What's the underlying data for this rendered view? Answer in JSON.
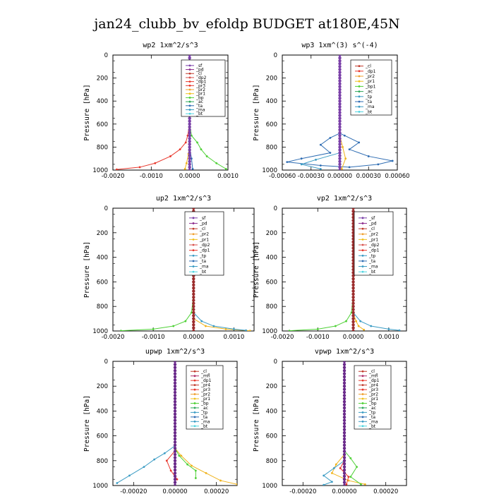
{
  "page_title": "jan24_clubb_bv_efoldp  BUDGET at180E,45N",
  "chart_data": [
    {
      "type": "line",
      "title": "wp2   1xm^2/s^3",
      "ylabel": "Pressure [hPa]",
      "xlim": [
        -0.002,
        0.001
      ],
      "ylim": [
        0,
        1000
      ],
      "x_ticks": [
        "-0.0020",
        "-0.0010",
        "0.0000",
        "0.0010"
      ],
      "x_tick_values": [
        -0.002,
        -0.001,
        0.0,
        0.001
      ],
      "y_ticks": [
        "0",
        "200",
        "400",
        "600",
        "800",
        "1000"
      ],
      "legend": [
        "_sf",
        "_pd",
        "_cl",
        "_dp2",
        "_dp1",
        "_pr3",
        "_pr2",
        "_pr1",
        "_bp",
        "_ac",
        "_ta",
        "_ma",
        "_bt"
      ],
      "series": [
        {
          "name": "_dp1",
          "color": "#e8372c",
          "points": [
            [
              0,
              0
            ],
            [
              0,
              600
            ],
            [
              -5e-05,
              700
            ],
            [
              -0.0001,
              760
            ],
            [
              -0.00025,
              820
            ],
            [
              -0.0005,
              880
            ],
            [
              -0.0009,
              940
            ],
            [
              -0.0013,
              975
            ],
            [
              -0.0019,
              995
            ]
          ]
        },
        {
          "name": "_bp",
          "color": "#4fd137",
          "points": [
            [
              0,
              0
            ],
            [
              0,
              600
            ],
            [
              5e-05,
              700
            ],
            [
              0.0002,
              760
            ],
            [
              0.0003,
              820
            ],
            [
              0.00045,
              880
            ],
            [
              0.0007,
              940
            ],
            [
              0.00095,
              990
            ]
          ]
        },
        {
          "name": "_pr1",
          "color": "#f0b31c",
          "points": [
            [
              0,
              0
            ],
            [
              0,
              760
            ],
            [
              -3e-05,
              860
            ],
            [
              -8e-05,
              940
            ],
            [
              -0.00012,
              990
            ]
          ]
        },
        {
          "name": "_ta",
          "color": "#2f6db3",
          "points": [
            [
              0,
              0
            ],
            [
              0,
              800
            ],
            [
              5e-05,
              900
            ],
            [
              8e-05,
              990
            ]
          ]
        },
        {
          "name": "_sf",
          "color": "#7a3fa8",
          "points": [
            [
              0,
              0
            ],
            [
              0,
              1000
            ]
          ]
        }
      ]
    },
    {
      "type": "line",
      "title": "wp3   1xm^(3) s^(-4)",
      "ylabel": "Pressure [hPa]",
      "xlim": [
        -0.0006,
        0.0006
      ],
      "ylim": [
        0,
        1000
      ],
      "x_ticks": [
        "-0.00060",
        "-0.00030",
        "0.00000",
        "0.00030",
        "0.00060"
      ],
      "x_tick_values": [
        -0.0006,
        -0.0003,
        0.0,
        0.0003,
        0.0006
      ],
      "y_ticks": [
        "0",
        "200",
        "400",
        "600",
        "800",
        "1000"
      ],
      "legend": [
        "_cl",
        "_dp1",
        "_pr2",
        "_pr1",
        "_bp1",
        "_ac",
        "_tp",
        "_ta",
        "_ma",
        "_bt"
      ],
      "series": [
        {
          "name": "_ta",
          "color": "#2f6db3",
          "points": [
            [
              0,
              0
            ],
            [
              0,
              680
            ],
            [
              -0.0001,
              720
            ],
            [
              -0.0002,
              780
            ],
            [
              -0.0001,
              850
            ],
            [
              -0.0004,
              900
            ],
            [
              -0.00055,
              930
            ],
            [
              -0.0002,
              960
            ],
            [
              0.0001,
              975
            ],
            [
              0.0004,
              950
            ],
            [
              0.00055,
              920
            ],
            [
              0.0003,
              880
            ],
            [
              0.0001,
              820
            ],
            [
              0.0002,
              760
            ],
            [
              5e-05,
              700
            ],
            [
              0,
              680
            ]
          ]
        },
        {
          "name": "_tp",
          "color": "#3b9cc4",
          "points": [
            [
              0,
              0
            ],
            [
              0,
              850
            ],
            [
              -0.00025,
              910
            ],
            [
              -0.0004,
              950
            ],
            [
              -0.0002,
              990
            ]
          ]
        },
        {
          "name": "_pr1",
          "color": "#f0b31c",
          "points": [
            [
              0,
              0
            ],
            [
              0,
              700
            ],
            [
              3e-05,
              800
            ],
            [
              6e-05,
              900
            ],
            [
              2e-05,
              990
            ]
          ]
        },
        {
          "name": "_cl",
          "color": "#7a3fa8",
          "points": [
            [
              0,
              0
            ],
            [
              0,
              1000
            ]
          ]
        }
      ]
    },
    {
      "type": "line",
      "title": "up2   1xm^2/s^3",
      "ylabel": "Pressure [hPa]",
      "xlim": [
        -0.002,
        0.0015
      ],
      "ylim": [
        0,
        1000
      ],
      "x_ticks": [
        "-0.0020",
        "-0.0010",
        "0.0000",
        "0.0010"
      ],
      "x_tick_values": [
        -0.002,
        -0.001,
        0.0,
        0.001
      ],
      "y_ticks": [
        "0",
        "200",
        "400",
        "600",
        "800",
        "1000"
      ],
      "legend": [
        "_sf",
        "_pd",
        "_cl",
        "_pr2",
        "_pr1",
        "_dp2",
        "_dp1",
        "_tp",
        "_ta",
        "_ma",
        "_bt"
      ],
      "series": [
        {
          "name": "_dp1",
          "color": "#4fd137",
          "points": [
            [
              0,
              0
            ],
            [
              0,
              700
            ],
            [
              -5e-05,
              850
            ],
            [
              -0.0002,
              920
            ],
            [
              -0.0005,
              960
            ],
            [
              -0.001,
              985
            ],
            [
              -0.0018,
              998
            ]
          ]
        },
        {
          "name": "_pr1",
          "color": "#f0b31c",
          "points": [
            [
              0,
              0
            ],
            [
              0,
              900
            ],
            [
              0.0003,
              960
            ],
            [
              0.0008,
              985
            ],
            [
              0.0014,
              998
            ]
          ]
        },
        {
          "name": "_tp",
          "color": "#3b9cc4",
          "points": [
            [
              0,
              0
            ],
            [
              0,
              850
            ],
            [
              0.0002,
              920
            ],
            [
              0.0005,
              960
            ],
            [
              0.001,
              985
            ],
            [
              0.0013,
              995
            ]
          ]
        },
        {
          "name": "_sf",
          "color": "#c0392b",
          "points": [
            [
              0,
              0
            ],
            [
              0,
              1000
            ]
          ]
        }
      ]
    },
    {
      "type": "line",
      "title": "vp2   1xm^2/s^3",
      "ylabel": "Pressure [hPa]",
      "xlim": [
        -0.002,
        0.0015
      ],
      "ylim": [
        0,
        1000
      ],
      "x_ticks": [
        "-0.0020",
        "-0.0010",
        "0.0000",
        "0.0010"
      ],
      "x_tick_values": [
        -0.002,
        -0.001,
        0.0,
        0.001
      ],
      "y_ticks": [
        "0",
        "200",
        "400",
        "600",
        "800",
        "1000"
      ],
      "legend": [
        "_sf",
        "_pd",
        "_cl",
        "_pr2",
        "_pr1",
        "_dp2",
        "_dp1",
        "_tp",
        "_ta",
        "_ma",
        "_bt"
      ],
      "series": [
        {
          "name": "_dp1",
          "color": "#4fd137",
          "points": [
            [
              0,
              0
            ],
            [
              0,
              700
            ],
            [
              -5e-05,
              850
            ],
            [
              -0.0002,
              920
            ],
            [
              -0.0005,
              960
            ],
            [
              -0.001,
              985
            ],
            [
              -0.0018,
              998
            ]
          ]
        },
        {
          "name": "_pr1",
          "color": "#f0b31c",
          "points": [
            [
              0,
              0
            ],
            [
              0,
              860
            ],
            [
              8e-05,
              920
            ],
            [
              0.00015,
              960
            ],
            [
              0.0003,
              990
            ]
          ]
        },
        {
          "name": "_tp",
          "color": "#3b9cc4",
          "points": [
            [
              0,
              0
            ],
            [
              0,
              850
            ],
            [
              0.0002,
              920
            ],
            [
              0.0005,
              960
            ],
            [
              0.001,
              985
            ],
            [
              0.0013,
              995
            ]
          ]
        },
        {
          "name": "_sf",
          "color": "#c0392b",
          "points": [
            [
              0,
              0
            ],
            [
              0,
              1000
            ]
          ]
        }
      ]
    },
    {
      "type": "line",
      "title": "upwp   1xm^2/s^3",
      "ylabel": "Pressure [hPa]",
      "xlim": [
        -0.0003,
        0.0003
      ],
      "ylim": [
        0,
        1000
      ],
      "x_ticks": [
        "-0.00020",
        "0.00000",
        "0.00020"
      ],
      "x_tick_values": [
        -0.0002,
        0.0,
        0.0002
      ],
      "y_ticks": [
        "0",
        "200",
        "400",
        "600",
        "800",
        "1000"
      ],
      "legend": [
        "_cl",
        "_mfl",
        "_dp1",
        "_pr4",
        "_pr3",
        "_pr2",
        "_pr1",
        "_bp",
        "_ac",
        "_tp",
        "_ta",
        "_ma",
        "_bt"
      ],
      "series": [
        {
          "name": "_pr1",
          "color": "#f0b31c",
          "points": [
            [
              0,
              0
            ],
            [
              0,
              700
            ],
            [
              3e-05,
              760
            ],
            [
              8e-05,
              840
            ],
            [
              0.00015,
              900
            ],
            [
              0.00022,
              960
            ],
            [
              0.0003,
              990
            ]
          ]
        },
        {
          "name": "_tp",
          "color": "#3b9cc4",
          "points": [
            [
              0,
              0
            ],
            [
              0,
              680
            ],
            [
              -5e-05,
              740
            ],
            [
              -0.0001,
              790
            ],
            [
              -0.00015,
              850
            ],
            [
              -0.00022,
              920
            ],
            [
              -0.00028,
              980
            ]
          ]
        },
        {
          "name": "_bp",
          "color": "#4fd137",
          "points": [
            [
              0,
              0
            ],
            [
              0,
              700
            ],
            [
              2e-05,
              760
            ],
            [
              6e-05,
              830
            ],
            [
              0.0001,
              880
            ],
            [
              0.0001,
              940
            ]
          ]
        },
        {
          "name": "_dp1",
          "color": "#e8372c",
          "points": [
            [
              0,
              0
            ],
            [
              0,
              720
            ],
            [
              -4e-05,
              800
            ],
            [
              -2e-05,
              880
            ],
            [
              1e-05,
              950
            ]
          ]
        },
        {
          "name": "_cl",
          "color": "#7a3fa8",
          "points": [
            [
              0,
              0
            ],
            [
              0,
              1000
            ]
          ]
        }
      ]
    },
    {
      "type": "line",
      "title": "vpwp   1xm^2/s^3",
      "ylabel": "Pressure [hPa]",
      "xlim": [
        -0.0003,
        0.0003
      ],
      "ylim": [
        0,
        1000
      ],
      "x_ticks": [
        "-0.00020",
        "0.00000",
        "0.00020"
      ],
      "x_tick_values": [
        -0.0002,
        0.0,
        0.0002
      ],
      "y_ticks": [
        "0",
        "200",
        "400",
        "600",
        "800",
        "1000"
      ],
      "legend": [
        "_cl",
        "_mfl",
        "_dp1",
        "_pr4",
        "_pr3",
        "_pr2",
        "_pr1",
        "_bp",
        "_ac",
        "_tp",
        "_ta",
        "_ma",
        "_bt"
      ],
      "series": [
        {
          "name": "_pr1",
          "color": "#f0b31c",
          "points": [
            [
              0,
              0
            ],
            [
              0,
              750
            ],
            [
              -4e-05,
              830
            ],
            [
              -6e-05,
              900
            ],
            [
              2e-05,
              960
            ],
            [
              0.0001,
              990
            ]
          ]
        },
        {
          "name": "_bp",
          "color": "#4fd137",
          "points": [
            [
              0,
              0
            ],
            [
              0,
              720
            ],
            [
              3e-05,
              780
            ],
            [
              6e-05,
              850
            ],
            [
              3e-05,
              930
            ],
            [
              8e-05,
              990
            ]
          ]
        },
        {
          "name": "_tp",
          "color": "#3b9cc4",
          "points": [
            [
              0,
              0
            ],
            [
              0,
              800
            ],
            [
              -5e-05,
              860
            ],
            [
              -0.0001,
              920
            ],
            [
              -6e-05,
              970
            ],
            [
              -0.0001,
              995
            ]
          ]
        },
        {
          "name": "_dp1",
          "color": "#e8372c",
          "points": [
            [
              0,
              0
            ],
            [
              0,
              800
            ],
            [
              -2e-05,
              860
            ],
            [
              2e-05,
              930
            ],
            [
              1e-05,
              990
            ]
          ]
        },
        {
          "name": "_cl",
          "color": "#7a3fa8",
          "points": [
            [
              0,
              0
            ],
            [
              0,
              1000
            ]
          ]
        }
      ]
    }
  ]
}
